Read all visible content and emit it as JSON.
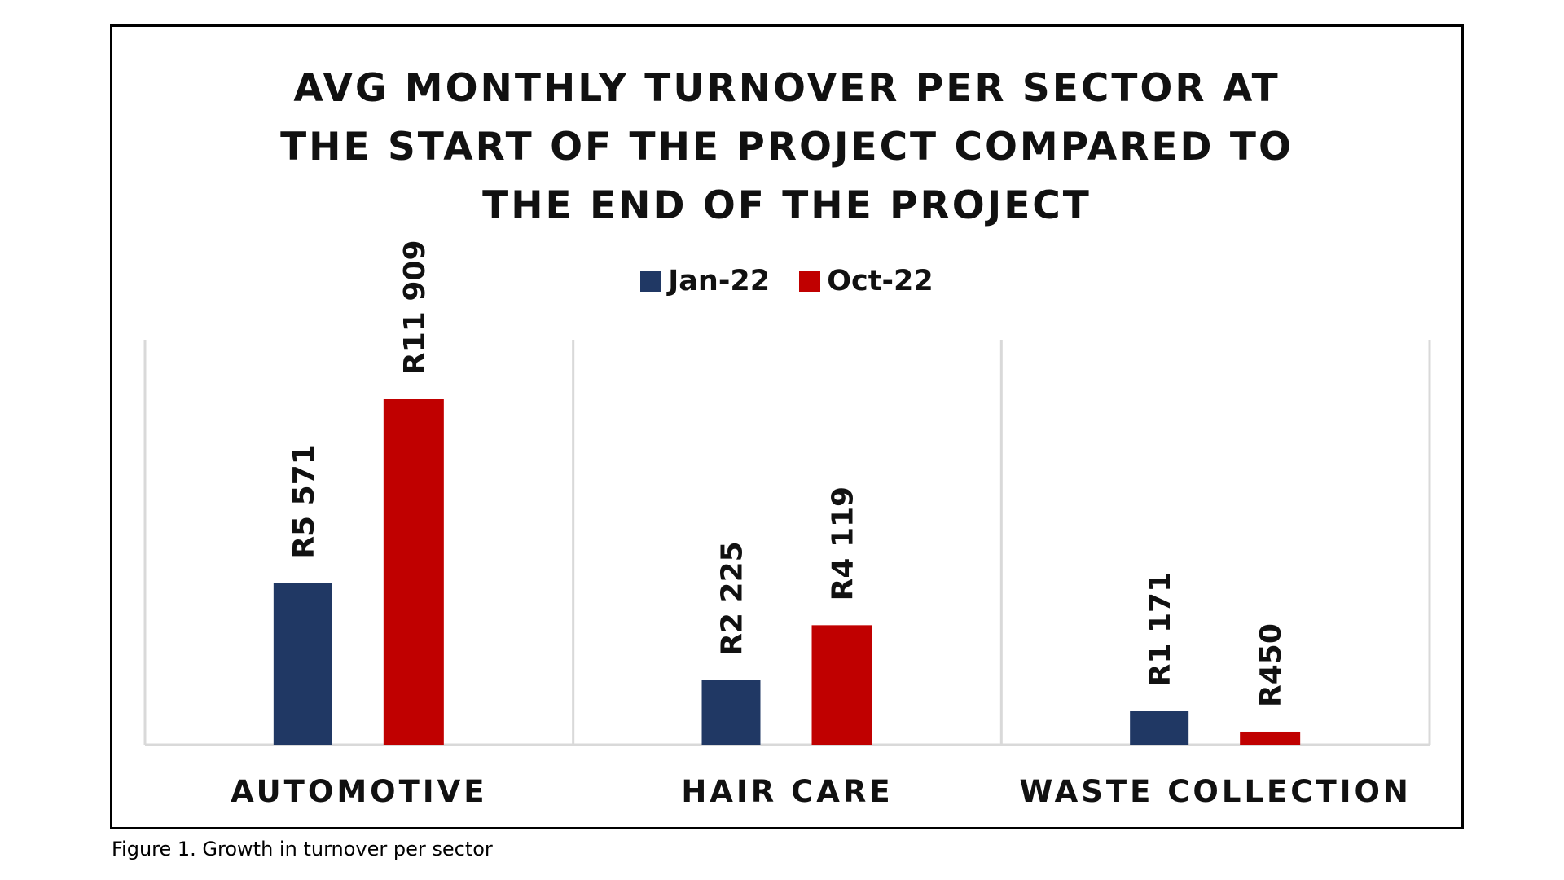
{
  "caption": "Figure 1. Growth in turnover per sector",
  "colors": {
    "jan": "#203864",
    "oct": "#c00000",
    "axis": "#d9d9d9",
    "text": "#111111"
  },
  "chart_data": {
    "type": "bar",
    "title_lines": [
      "AVG MONTHLY TURNOVER PER SECTOR AT",
      "THE START OF THE PROJECT COMPARED TO",
      "THE END OF THE PROJECT"
    ],
    "title": "AVG MONTHLY TURNOVER PER SECTOR AT THE START OF THE PROJECT COMPARED TO THE END OF THE PROJECT",
    "categories": [
      "AUTOMOTIVE",
      "HAIR CARE",
      "WASTE COLLECTION"
    ],
    "series": [
      {
        "name": "Jan-22",
        "color": "#203864",
        "values": [
          5571,
          2225,
          1171
        ],
        "labels": [
          "R5 571",
          "R2 225",
          "R1 171"
        ]
      },
      {
        "name": "Oct-22",
        "color": "#c00000",
        "values": [
          11909,
          4119,
          450
        ],
        "labels": [
          "R11 909",
          "R4 119",
          "R450"
        ]
      }
    ],
    "ylim": [
      0,
      13500
    ],
    "y_axis_visible": false,
    "grid": false,
    "legend_position": "top-center",
    "data_labels": "rotated-vertical"
  }
}
